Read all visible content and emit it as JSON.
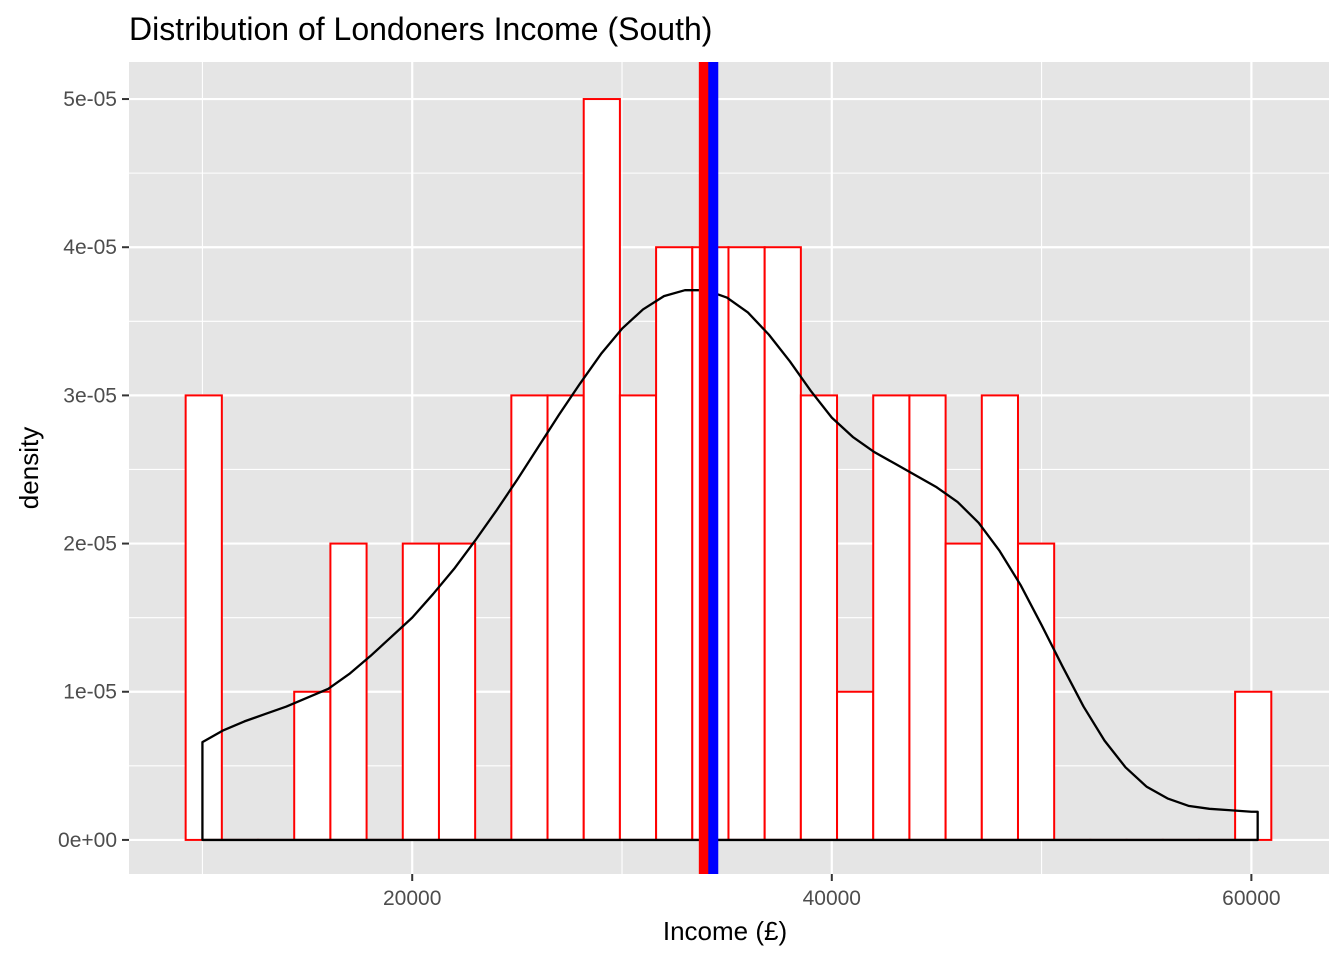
{
  "chart_data": {
    "type": "bar",
    "title": "Distribution of Londoners Income (South)",
    "xlabel": "Income (£)",
    "ylabel": "density",
    "xlim": [
      6500,
      63700
    ],
    "ylim": [
      -2.3e-06,
      5.25e-05
    ],
    "x_ticks": [
      {
        "value": 20000,
        "label": "20000"
      },
      {
        "value": 40000,
        "label": "40000"
      },
      {
        "value": 60000,
        "label": "60000"
      }
    ],
    "y_ticks": [
      {
        "value": 0,
        "label": "0e+00"
      },
      {
        "value": 1e-05,
        "label": "1e-05"
      },
      {
        "value": 2e-05,
        "label": "2e-05"
      },
      {
        "value": 3e-05,
        "label": "3e-05"
      },
      {
        "value": 4e-05,
        "label": "4e-05"
      },
      {
        "value": 5e-05,
        "label": "5e-05"
      }
    ],
    "grid": true,
    "histogram": {
      "bin_width": 1725,
      "bins": [
        {
          "x0": 9200,
          "x1": 10925,
          "density": 3e-05
        },
        {
          "x0": 10925,
          "x1": 12650,
          "density": 0
        },
        {
          "x0": 12650,
          "x1": 14375,
          "density": 0
        },
        {
          "x0": 14375,
          "x1": 16100,
          "density": 1e-05
        },
        {
          "x0": 16100,
          "x1": 17825,
          "density": 2e-05
        },
        {
          "x0": 17825,
          "x1": 19550,
          "density": 0
        },
        {
          "x0": 19550,
          "x1": 21275,
          "density": 2e-05
        },
        {
          "x0": 21275,
          "x1": 23000,
          "density": 2e-05
        },
        {
          "x0": 23000,
          "x1": 24725,
          "density": 0
        },
        {
          "x0": 24725,
          "x1": 26450,
          "density": 3e-05
        },
        {
          "x0": 26450,
          "x1": 28175,
          "density": 3e-05
        },
        {
          "x0": 28175,
          "x1": 29900,
          "density": 5e-05
        },
        {
          "x0": 29900,
          "x1": 31625,
          "density": 3e-05
        },
        {
          "x0": 31625,
          "x1": 33350,
          "density": 4e-05
        },
        {
          "x0": 33350,
          "x1": 35075,
          "density": 4e-05
        },
        {
          "x0": 35075,
          "x1": 36800,
          "density": 4e-05
        },
        {
          "x0": 36800,
          "x1": 38525,
          "density": 4e-05
        },
        {
          "x0": 38525,
          "x1": 40250,
          "density": 3e-05
        },
        {
          "x0": 40250,
          "x1": 41975,
          "density": 1e-05
        },
        {
          "x0": 41975,
          "x1": 43700,
          "density": 3e-05
        },
        {
          "x0": 43700,
          "x1": 45425,
          "density": 3e-05
        },
        {
          "x0": 45425,
          "x1": 47150,
          "density": 2e-05
        },
        {
          "x0": 47150,
          "x1": 48875,
          "density": 3e-05
        },
        {
          "x0": 48875,
          "x1": 50600,
          "density": 2e-05
        },
        {
          "x0": 50600,
          "x1": 52325,
          "density": 0
        },
        {
          "x0": 52325,
          "x1": 54050,
          "density": 0
        },
        {
          "x0": 54050,
          "x1": 55775,
          "density": 0
        },
        {
          "x0": 55775,
          "x1": 57500,
          "density": 0
        },
        {
          "x0": 57500,
          "x1": 59225,
          "density": 0
        },
        {
          "x0": 59225,
          "x1": 60950,
          "density": 1e-05
        }
      ],
      "fill": "#ffffff",
      "outline": "#ff0000"
    },
    "density_curve": {
      "color": "#000000",
      "points": [
        [
          10000,
          6.6e-06
        ],
        [
          11000,
          7.4e-06
        ],
        [
          12000,
          8e-06
        ],
        [
          13000,
          8.5e-06
        ],
        [
          14000,
          9e-06
        ],
        [
          15000,
          9.6e-06
        ],
        [
          16000,
          1.02e-05
        ],
        [
          17000,
          1.12e-05
        ],
        [
          18000,
          1.24e-05
        ],
        [
          19000,
          1.37e-05
        ],
        [
          20000,
          1.5e-05
        ],
        [
          21000,
          1.66e-05
        ],
        [
          22000,
          1.83e-05
        ],
        [
          23000,
          2.02e-05
        ],
        [
          24000,
          2.22e-05
        ],
        [
          25000,
          2.43e-05
        ],
        [
          26000,
          2.65e-05
        ],
        [
          27000,
          2.87e-05
        ],
        [
          28000,
          3.08e-05
        ],
        [
          29000,
          3.28e-05
        ],
        [
          30000,
          3.45e-05
        ],
        [
          31000,
          3.58e-05
        ],
        [
          32000,
          3.67e-05
        ],
        [
          33000,
          3.71e-05
        ],
        [
          34000,
          3.71e-05
        ],
        [
          35000,
          3.66e-05
        ],
        [
          36000,
          3.56e-05
        ],
        [
          37000,
          3.41e-05
        ],
        [
          38000,
          3.23e-05
        ],
        [
          39000,
          3.03e-05
        ],
        [
          40000,
          2.85e-05
        ],
        [
          41000,
          2.72e-05
        ],
        [
          42000,
          2.62e-05
        ],
        [
          43000,
          2.54e-05
        ],
        [
          44000,
          2.46e-05
        ],
        [
          45000,
          2.38e-05
        ],
        [
          46000,
          2.28e-05
        ],
        [
          47000,
          2.14e-05
        ],
        [
          48000,
          1.95e-05
        ],
        [
          49000,
          1.72e-05
        ],
        [
          50000,
          1.45e-05
        ],
        [
          51000,
          1.17e-05
        ],
        [
          52000,
          9e-06
        ],
        [
          53000,
          6.7e-06
        ],
        [
          54000,
          4.9e-06
        ],
        [
          55000,
          3.6e-06
        ],
        [
          56000,
          2.8e-06
        ],
        [
          57000,
          2.3e-06
        ],
        [
          58000,
          2.1e-06
        ],
        [
          59000,
          2e-06
        ],
        [
          60000,
          1.9e-06
        ],
        [
          60300,
          1.9e-06
        ]
      ]
    },
    "vlines": [
      {
        "name": "mean",
        "value": 33900,
        "color": "#ff0000"
      },
      {
        "name": "median",
        "value": 34350,
        "color": "#0000ff"
      }
    ],
    "panel_background": "#e5e5e5",
    "gridline_color": "#ffffff"
  }
}
